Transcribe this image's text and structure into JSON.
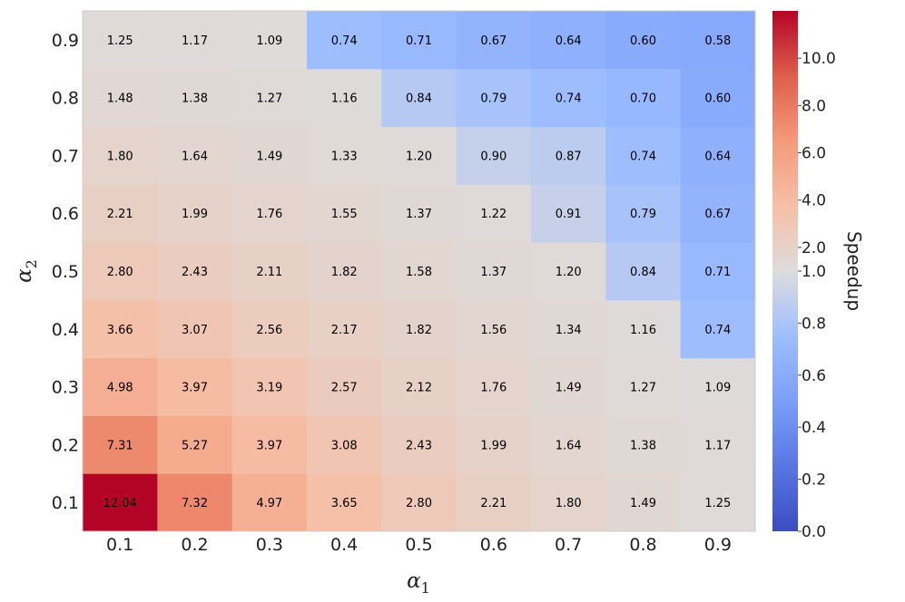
{
  "chart_data": {
    "type": "heatmap",
    "x_label": {
      "symbol": "α",
      "sub": "1"
    },
    "y_label": {
      "symbol": "α",
      "sub": "2"
    },
    "x_categories": [
      "0.1",
      "0.2",
      "0.3",
      "0.4",
      "0.5",
      "0.6",
      "0.7",
      "0.8",
      "0.9"
    ],
    "y_categories": [
      "0.1",
      "0.2",
      "0.3",
      "0.4",
      "0.5",
      "0.6",
      "0.7",
      "0.8",
      "0.9"
    ],
    "values": [
      [
        12.04,
        7.32,
        4.97,
        3.65,
        2.8,
        2.21,
        1.8,
        1.49,
        1.25
      ],
      [
        7.31,
        5.27,
        3.97,
        3.08,
        2.43,
        1.99,
        1.64,
        1.38,
        1.17
      ],
      [
        4.98,
        3.97,
        3.19,
        2.57,
        2.12,
        1.76,
        1.49,
        1.27,
        1.09
      ],
      [
        3.66,
        3.07,
        2.56,
        2.17,
        1.82,
        1.56,
        1.34,
        1.16,
        0.74
      ],
      [
        2.8,
        2.43,
        2.11,
        1.82,
        1.58,
        1.37,
        1.2,
        0.84,
        0.71
      ],
      [
        2.21,
        1.99,
        1.76,
        1.55,
        1.37,
        1.22,
        0.91,
        0.79,
        0.67
      ],
      [
        1.8,
        1.64,
        1.49,
        1.33,
        1.2,
        0.9,
        0.87,
        0.74,
        0.64
      ],
      [
        1.48,
        1.38,
        1.27,
        1.16,
        0.84,
        0.79,
        0.74,
        0.7,
        0.6
      ],
      [
        1.25,
        1.17,
        1.09,
        0.74,
        0.71,
        0.67,
        0.64,
        0.6,
        0.58
      ]
    ],
    "value_format_decimals": 2,
    "colormap": "coolwarm",
    "colorbar": {
      "label": "Speedup",
      "ticks": [
        "0.0",
        "0.2",
        "0.4",
        "0.6",
        "0.8",
        "1.0",
        "2.0",
        "4.0",
        "6.0",
        "8.0",
        "10.0"
      ],
      "scale": "two-slope (linear below 1.0, linear above 1.0)",
      "range": [
        0.0,
        12.0
      ],
      "center": 1.0
    },
    "colors": {
      "cold_end": "#3b4cc0",
      "neutral": "#dddcdc",
      "hot_end": "#b40426"
    },
    "grid": false
  }
}
